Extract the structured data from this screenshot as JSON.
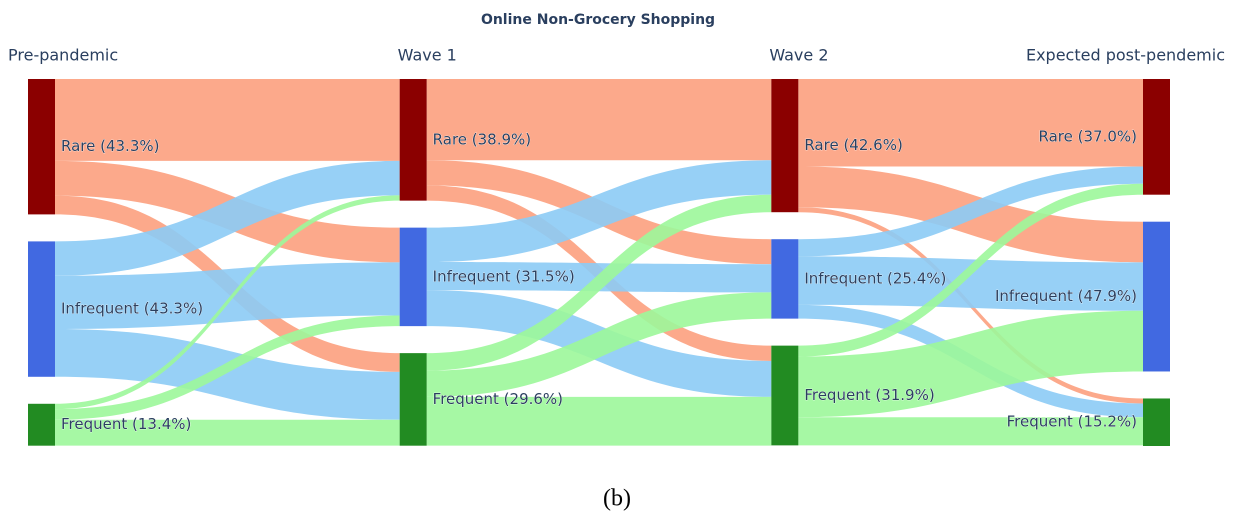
{
  "chart_data": {
    "type": "sankey",
    "title": "Online Non-Grocery Shopping",
    "caption": "(b)",
    "columns": [
      "Pre-pandemic",
      "Wave 1",
      "Wave 2",
      "Expected post-pendemic"
    ],
    "nodes": [
      {
        "label": "Rare (43.3%)",
        "value": 43.3,
        "column": 0,
        "color": "#8b0000",
        "link_color": "#fca07e"
      },
      {
        "label": "Infrequent (43.3%)",
        "value": 43.3,
        "column": 0,
        "color": "#4169e1",
        "link_color": "#8ccbf5"
      },
      {
        "label": "Frequent (13.4%)",
        "value": 13.4,
        "column": 0,
        "color": "#228b22",
        "link_color": "#9cf79a"
      },
      {
        "label": "Rare (38.9%)",
        "value": 38.9,
        "column": 1,
        "color": "#8b0000",
        "link_color": "#fca07e"
      },
      {
        "label": "Infrequent (31.5%)",
        "value": 31.5,
        "column": 1,
        "color": "#4169e1",
        "link_color": "#8ccbf5"
      },
      {
        "label": "Frequent (29.6%)",
        "value": 29.6,
        "column": 1,
        "color": "#228b22",
        "link_color": "#9cf79a"
      },
      {
        "label": "Rare (42.6%)",
        "value": 42.6,
        "column": 2,
        "color": "#8b0000",
        "link_color": "#fca07e"
      },
      {
        "label": "Infrequent (25.4%)",
        "value": 25.4,
        "column": 2,
        "color": "#4169e1",
        "link_color": "#8ccbf5"
      },
      {
        "label": "Frequent (31.9%)",
        "value": 31.9,
        "column": 2,
        "color": "#228b22",
        "link_color": "#9cf79a"
      },
      {
        "label": "Rare (37.0%)",
        "value": 37.0,
        "column": 3,
        "color": "#8b0000",
        "link_color": "#fca07e"
      },
      {
        "label": "Infrequent (47.9%)",
        "value": 47.9,
        "column": 3,
        "color": "#4169e1",
        "link_color": "#8ccbf5"
      },
      {
        "label": "Frequent (15.2%)",
        "value": 15.2,
        "column": 3,
        "color": "#228b22",
        "link_color": "#9cf79a"
      }
    ],
    "links": [
      {
        "source": 0,
        "target": 3,
        "value": 26.2
      },
      {
        "source": 0,
        "target": 4,
        "value": 11.1
      },
      {
        "source": 0,
        "target": 5,
        "value": 6.0
      },
      {
        "source": 1,
        "target": 3,
        "value": 11.0
      },
      {
        "source": 1,
        "target": 4,
        "value": 17.0
      },
      {
        "source": 1,
        "target": 5,
        "value": 15.3
      },
      {
        "source": 2,
        "target": 3,
        "value": 1.7
      },
      {
        "source": 2,
        "target": 4,
        "value": 3.4
      },
      {
        "source": 2,
        "target": 5,
        "value": 8.3
      },
      {
        "source": 3,
        "target": 6,
        "value": 26.0
      },
      {
        "source": 3,
        "target": 7,
        "value": 8.0
      },
      {
        "source": 3,
        "target": 8,
        "value": 4.9
      },
      {
        "source": 4,
        "target": 6,
        "value": 11.0
      },
      {
        "source": 4,
        "target": 7,
        "value": 9.0
      },
      {
        "source": 4,
        "target": 8,
        "value": 11.5
      },
      {
        "source": 5,
        "target": 6,
        "value": 5.6
      },
      {
        "source": 5,
        "target": 7,
        "value": 8.4
      },
      {
        "source": 5,
        "target": 8,
        "value": 15.6
      },
      {
        "source": 6,
        "target": 9,
        "value": 28.0
      },
      {
        "source": 6,
        "target": 10,
        "value": 13.0
      },
      {
        "source": 6,
        "target": 11,
        "value": 1.6
      },
      {
        "source": 7,
        "target": 9,
        "value": 5.5
      },
      {
        "source": 7,
        "target": 10,
        "value": 15.5
      },
      {
        "source": 7,
        "target": 11,
        "value": 4.4
      },
      {
        "source": 8,
        "target": 9,
        "value": 3.5
      },
      {
        "source": 8,
        "target": 10,
        "value": 19.4
      },
      {
        "source": 8,
        "target": 11,
        "value": 9.0
      }
    ]
  }
}
